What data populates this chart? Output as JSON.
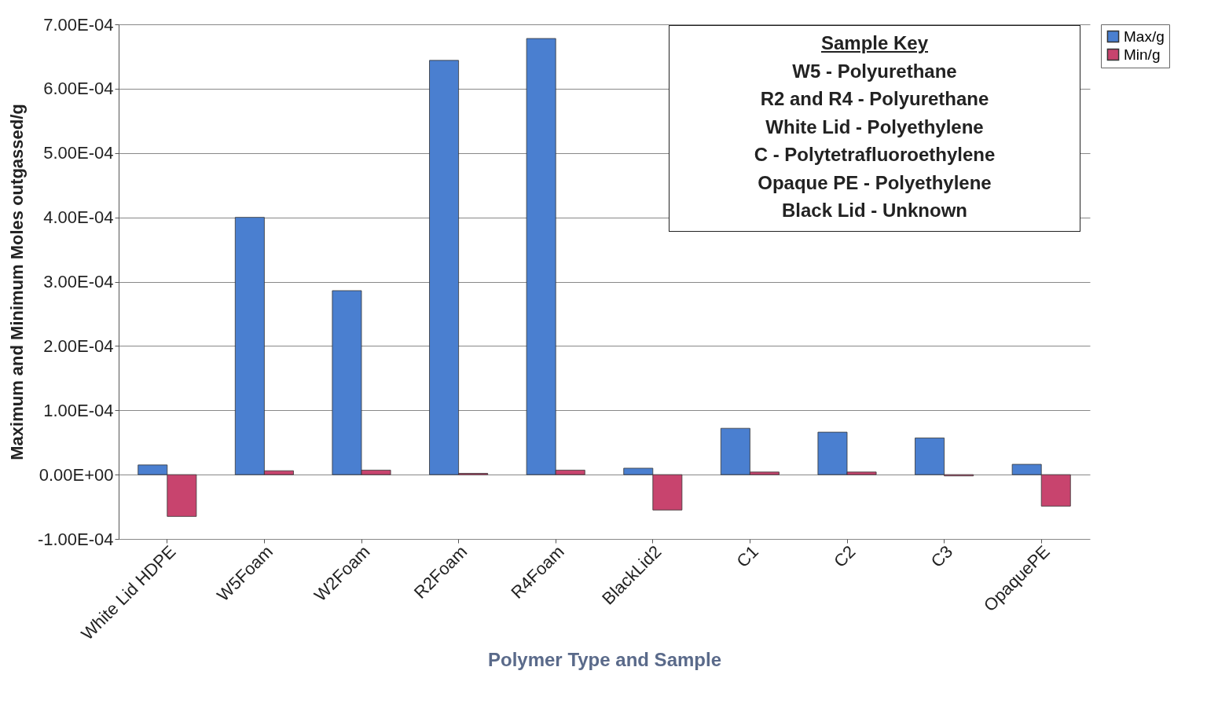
{
  "chart_data": {
    "type": "bar",
    "xlabel": "Polymer Type and Sample",
    "ylabel": "Maximum and Minimum Moles outgassed/g",
    "categories": [
      "White Lid HDPE",
      "W5Foam",
      "W2Foam",
      "R2Foam",
      "R4Foam",
      "BlackLid2",
      "C1",
      "C2",
      "C3",
      "OpaquePE"
    ],
    "series": [
      {
        "name": "Max/g",
        "color": "#4a7fd0",
        "values": [
          1.5e-05,
          0.0004,
          0.000286,
          0.000644,
          0.000678,
          1e-05,
          7.2e-05,
          6.6e-05,
          5.7e-05,
          1.6e-05
        ]
      },
      {
        "name": "Min/g",
        "color": "#c8446e",
        "values": [
          -6.5e-05,
          6e-06,
          7e-06,
          2e-06,
          7e-06,
          -5.5e-05,
          4e-06,
          4e-06,
          -2e-06,
          -4.9e-05
        ]
      }
    ],
    "ylim": [
      -0.0001,
      0.0007
    ],
    "yticks": [
      {
        "value": -0.0001,
        "label": "-1.00E-04"
      },
      {
        "value": 0,
        "label": "0.00E+00"
      },
      {
        "value": 0.0001,
        "label": "1.00E-04"
      },
      {
        "value": 0.0002,
        "label": "2.00E-04"
      },
      {
        "value": 0.0003,
        "label": "3.00E-04"
      },
      {
        "value": 0.0004,
        "label": "4.00E-04"
      },
      {
        "value": 0.0005,
        "label": "5.00E-04"
      },
      {
        "value": 0.0006,
        "label": "6.00E-04"
      },
      {
        "value": 0.0007,
        "label": "7.00E-04"
      }
    ],
    "grid": "y",
    "legend": "right",
    "annotations": [
      "Sample Key",
      "W5 - Polyurethane",
      "R2 and R4 - Polyurethane",
      "White Lid - Polyethylene",
      "C - Polytetrafluoroethylene",
      "Opaque PE - Polyethylene",
      "Black Lid - Unknown"
    ]
  }
}
